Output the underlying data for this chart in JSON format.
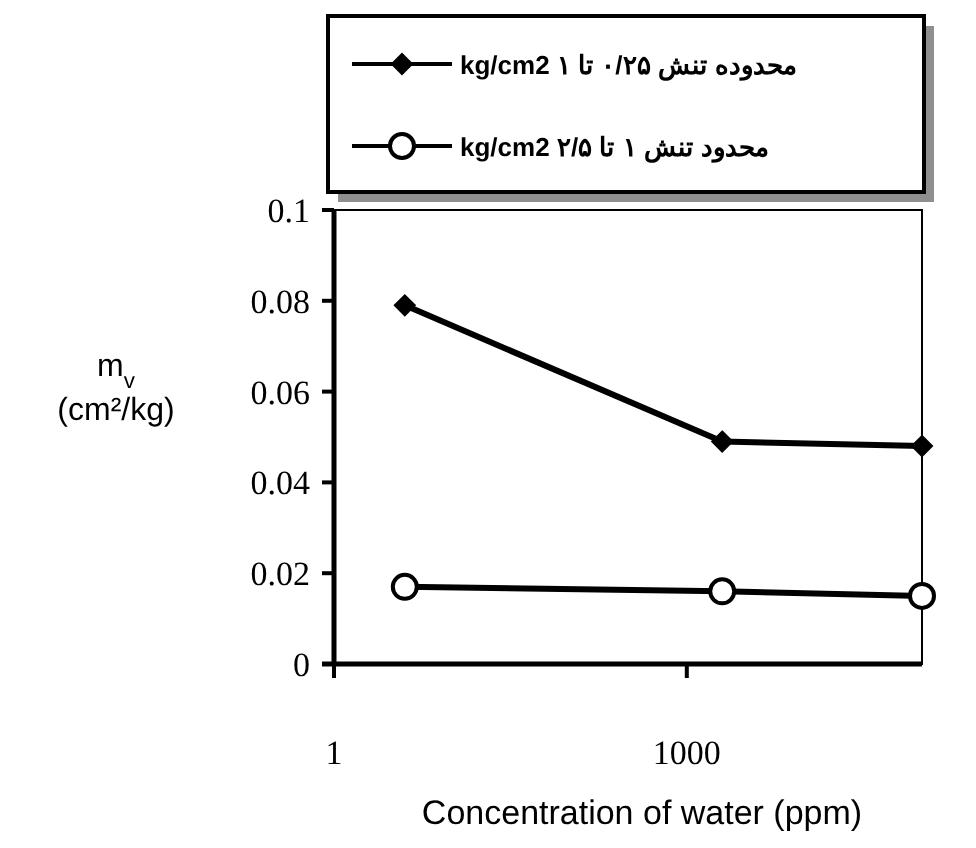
{
  "chart_data": {
    "type": "line",
    "xlabel": "Concentration of water (ppm)",
    "ylabel": "m$_{v}$ (cm²/kg)",
    "log": "x",
    "legend": "top",
    "xlim": [
      1,
      100000
    ],
    "xticks": [
      1,
      1000
    ],
    "ylim": [
      0,
      0.1
    ],
    "yticks": [
      0,
      0.02,
      0.04,
      0.06,
      0.08,
      0.1
    ],
    "x": [
      4,
      2000,
      100000
    ],
    "series": [
      {
        "name": "محدوده تنش ۰/۲۵ تا ۱ kg/cm2",
        "color": "#000000",
        "marker": "diamond",
        "values": [
          0.079,
          0.049,
          0.048
        ]
      },
      {
        "name": "محدود تنش ۱ تا ۲/۵ kg/cm2",
        "color": "#000000",
        "marker": "circle",
        "values": [
          0.017,
          0.016,
          0.015
        ]
      }
    ]
  }
}
